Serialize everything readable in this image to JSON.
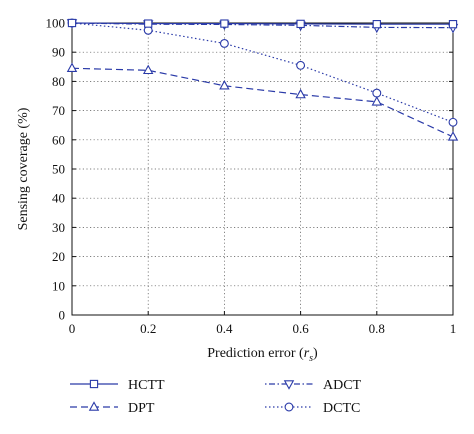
{
  "chart_data": {
    "type": "line",
    "xlabel": "Prediction error (",
    "xlabel_var": "r",
    "xlabel_sub": "s",
    "xlabel_close": ")",
    "ylabel": "Sensing coverage (%)",
    "xlim": [
      0,
      1
    ],
    "ylim": [
      0,
      100
    ],
    "x": [
      0,
      0.2,
      0.4,
      0.6,
      0.8,
      1
    ],
    "xticks": [
      "0",
      "0.2",
      "0.4",
      "0.6",
      "0.8",
      "1"
    ],
    "yticks": [
      "0",
      "10",
      "20",
      "30",
      "40",
      "50",
      "60",
      "70",
      "80",
      "90",
      "100"
    ],
    "grid": true,
    "legend_position": "below",
    "color": "#2a3aa8",
    "series": [
      {
        "name": "HCTT",
        "values": [
          100,
          99.8,
          99.8,
          99.7,
          99.6,
          99.6
        ],
        "marker": "square",
        "dash": "solid"
      },
      {
        "name": "DPT",
        "values": [
          84.5,
          83.8,
          78.5,
          75.5,
          73,
          61
        ],
        "marker": "triangle-up",
        "dash": "dashed"
      },
      {
        "name": "ADCT",
        "values": [
          100,
          99.6,
          99.5,
          99.2,
          98.5,
          98.4
        ],
        "marker": "triangle-down",
        "dash": "dashdot"
      },
      {
        "name": "DCTC",
        "values": [
          100,
          97.5,
          93,
          85.5,
          76,
          66
        ],
        "marker": "circle",
        "dash": "dotted"
      }
    ]
  }
}
